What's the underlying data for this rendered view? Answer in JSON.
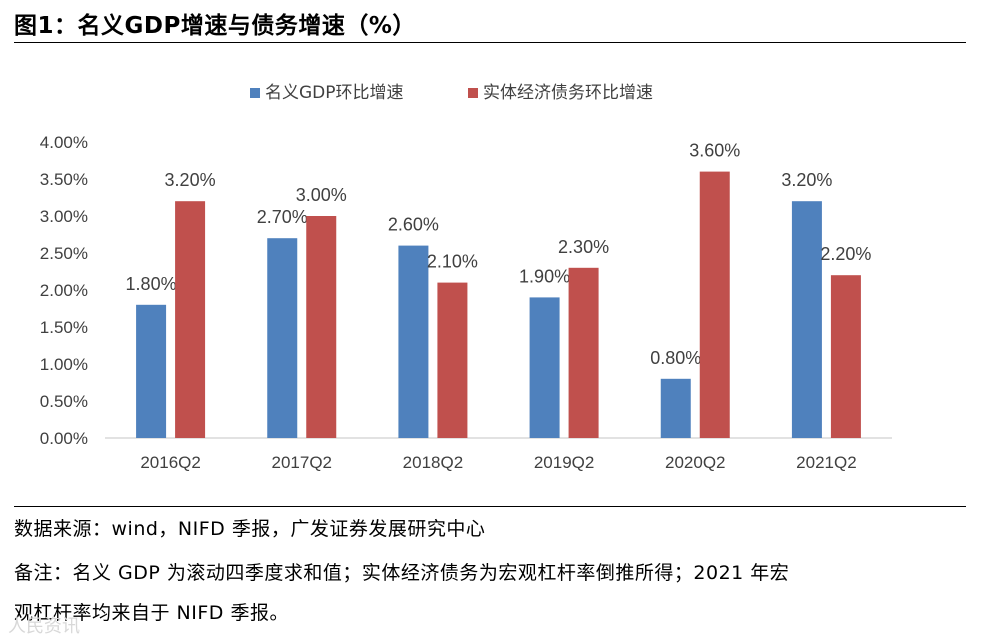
{
  "figure_title": "图1：名义GDP增速与债务增速（%）",
  "source_note": "数据来源：wind，NIFD 季报，广发证券发展研究中心",
  "remark_line1": "备注：名义 GDP 为滚动四季度求和值；实体经济债务为宏观杠杆率倒推所得；2021 年宏",
  "remark_line2": "观杠杆率均来自于 NIFD 季报。",
  "watermark": "人民资讯",
  "colors": {
    "series1": "#4F81BD",
    "series2": "#C0504D",
    "axis": "#D9D9D9",
    "text": "#404040"
  },
  "chart_data": {
    "type": "bar",
    "categories": [
      "2016Q2",
      "2017Q2",
      "2018Q2",
      "2019Q2",
      "2020Q2",
      "2021Q2"
    ],
    "series": [
      {
        "name": "名义GDP环比增速",
        "values": [
          1.8,
          2.7,
          2.6,
          1.9,
          0.8,
          3.2
        ],
        "labels": [
          "1.80%",
          "2.70%",
          "2.60%",
          "1.90%",
          "0.80%",
          "3.20%"
        ]
      },
      {
        "name": "实体经济债务环比增速",
        "values": [
          3.2,
          3.0,
          2.1,
          2.3,
          3.6,
          2.2
        ],
        "labels": [
          "3.20%",
          "3.00%",
          "2.10%",
          "2.30%",
          "3.60%",
          "2.20%"
        ]
      }
    ],
    "y_ticks": [
      "0.00%",
      "0.50%",
      "1.00%",
      "1.50%",
      "2.00%",
      "2.50%",
      "3.00%",
      "3.50%",
      "4.00%"
    ],
    "ylim": [
      0,
      4.0
    ],
    "legend_position": "top-center",
    "grid": false
  }
}
